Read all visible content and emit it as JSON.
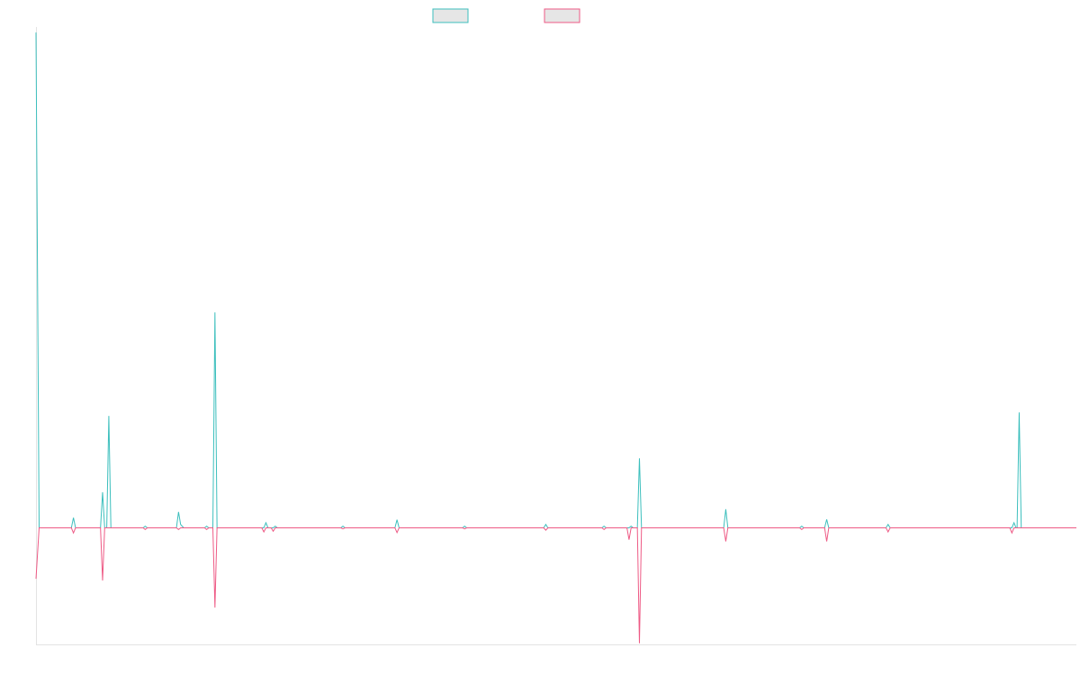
{
  "colors": {
    "series_a": "#3cbfbd",
    "series_b": "#ee5a85",
    "axis": "#e3e3e3",
    "legend_fill": "#e6e6e6"
  },
  "chart_data": {
    "type": "line",
    "title": "",
    "xlabel": "",
    "ylabel": "",
    "grid": false,
    "legend": "top-center",
    "xlim": [
      0,
      1000
    ],
    "ylim": [
      -1000,
      800
    ],
    "series": [
      {
        "key": "series_a",
        "points": [
          [
            0,
            1460
          ],
          [
            3,
            0
          ],
          [
            34,
            0
          ],
          [
            36,
            30
          ],
          [
            38,
            0
          ],
          [
            62,
            0
          ],
          [
            64,
            105
          ],
          [
            66,
            0
          ],
          [
            68,
            0
          ],
          [
            70,
            330
          ],
          [
            72,
            0
          ],
          [
            103,
            0
          ],
          [
            105,
            5
          ],
          [
            107,
            0
          ],
          [
            135,
            0
          ],
          [
            137,
            47
          ],
          [
            139,
            10
          ],
          [
            142,
            0
          ],
          [
            162,
            0
          ],
          [
            164,
            5
          ],
          [
            166,
            0
          ],
          [
            170,
            0
          ],
          [
            172,
            635
          ],
          [
            174,
            0
          ],
          [
            219,
            0
          ],
          [
            221,
            15
          ],
          [
            223,
            0
          ],
          [
            228,
            0
          ],
          [
            230,
            5
          ],
          [
            232,
            0
          ],
          [
            293,
            0
          ],
          [
            295,
            5
          ],
          [
            297,
            0
          ],
          [
            345,
            0
          ],
          [
            347,
            24
          ],
          [
            349,
            0
          ],
          [
            410,
            0
          ],
          [
            412,
            5
          ],
          [
            414,
            0
          ],
          [
            488,
            0
          ],
          [
            490,
            10
          ],
          [
            492,
            0
          ],
          [
            544,
            0
          ],
          [
            546,
            5
          ],
          [
            548,
            0
          ],
          [
            570,
            0
          ],
          [
            572,
            5
          ],
          [
            574,
            0
          ],
          [
            578,
            0
          ],
          [
            580,
            205
          ],
          [
            582,
            0
          ],
          [
            661,
            0
          ],
          [
            663,
            55
          ],
          [
            665,
            0
          ],
          [
            734,
            0
          ],
          [
            736,
            5
          ],
          [
            738,
            0
          ],
          [
            758,
            0
          ],
          [
            760,
            25
          ],
          [
            762,
            0
          ],
          [
            817,
            0
          ],
          [
            819,
            10
          ],
          [
            821,
            0
          ],
          [
            938,
            0
          ],
          [
            940,
            15
          ],
          [
            942,
            0
          ],
          [
            943,
            0
          ],
          [
            945,
            340
          ],
          [
            947,
            0
          ],
          [
            1000,
            0
          ]
        ]
      },
      {
        "key": "series_b",
        "points": [
          [
            0,
            -150
          ],
          [
            3,
            0
          ],
          [
            34,
            0
          ],
          [
            36,
            -15
          ],
          [
            38,
            0
          ],
          [
            62,
            0
          ],
          [
            64,
            -155
          ],
          [
            66,
            0
          ],
          [
            68,
            0
          ],
          [
            103,
            0
          ],
          [
            105,
            -5
          ],
          [
            107,
            0
          ],
          [
            135,
            0
          ],
          [
            137,
            -5
          ],
          [
            139,
            0
          ],
          [
            162,
            0
          ],
          [
            164,
            -5
          ],
          [
            166,
            0
          ],
          [
            170,
            0
          ],
          [
            172,
            -235
          ],
          [
            174,
            0
          ],
          [
            217,
            0
          ],
          [
            219,
            -12
          ],
          [
            221,
            0
          ],
          [
            226,
            0
          ],
          [
            228,
            -10
          ],
          [
            230,
            0
          ],
          [
            293,
            0
          ],
          [
            295,
            -3
          ],
          [
            297,
            0
          ],
          [
            345,
            0
          ],
          [
            347,
            -14
          ],
          [
            349,
            0
          ],
          [
            410,
            0
          ],
          [
            412,
            -3
          ],
          [
            414,
            0
          ],
          [
            488,
            0
          ],
          [
            490,
            -7
          ],
          [
            492,
            0
          ],
          [
            544,
            0
          ],
          [
            546,
            -5
          ],
          [
            548,
            0
          ],
          [
            568,
            0
          ],
          [
            570,
            -35
          ],
          [
            572,
            0
          ],
          [
            578,
            0
          ],
          [
            580,
            -340
          ],
          [
            582,
            0
          ],
          [
            661,
            0
          ],
          [
            663,
            -40
          ],
          [
            665,
            0
          ],
          [
            734,
            0
          ],
          [
            736,
            -5
          ],
          [
            738,
            0
          ],
          [
            758,
            0
          ],
          [
            760,
            -40
          ],
          [
            762,
            0
          ],
          [
            817,
            0
          ],
          [
            819,
            -12
          ],
          [
            821,
            0
          ],
          [
            936,
            0
          ],
          [
            938,
            -15
          ],
          [
            940,
            0
          ],
          [
            1000,
            0
          ]
        ]
      }
    ]
  }
}
